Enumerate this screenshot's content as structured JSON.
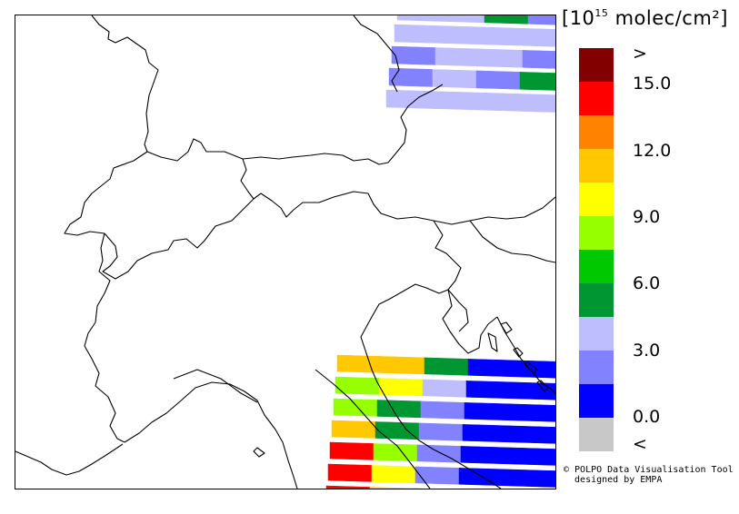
{
  "colorbar": {
    "title_base": "[10",
    "title_exp": "15",
    "title_unit": " molec/cm²]",
    "colors": [
      "#c8c8c8",
      "#0000ff",
      "#8282ff",
      "#bebeff",
      "#009632",
      "#00c800",
      "#96ff00",
      "#ffff00",
      "#ffc800",
      "#ff8200",
      "#ff0000",
      "#820000"
    ],
    "labels": [
      ">",
      "15.0",
      "12.0",
      "9.0",
      "6.0",
      "3.0",
      "0.0",
      "<"
    ]
  },
  "credits": {
    "line1": "© POLPO Data Visualisation Tool",
    "line2": "  designed by EMPA"
  },
  "map": {
    "region": "Alps, Northern Italy and Adriatic",
    "ne_swath": [
      [
        "#bebeff",
        "#bebeff",
        "#009632",
        "#8282ff",
        "#8282ff"
      ],
      [
        "#bebeff",
        "#bebeff",
        "#bebeff",
        "#bebeff",
        "#8282ff"
      ],
      [
        "#8282ff",
        "#bebeff",
        "#bebeff",
        "#8282ff",
        "#8282ff"
      ],
      [
        "#8282ff",
        "#bebeff",
        "#8282ff",
        "#009632",
        "#8282ff"
      ],
      [
        "#bebeff",
        "#bebeff",
        "#bebeff",
        "#bebeff",
        "#8282ff"
      ]
    ],
    "se_swath": [
      [
        "#ffc800",
        "#ffc800",
        "#009632",
        "#0000ff",
        "#0000ff",
        "#0000ff"
      ],
      [
        "#96ff00",
        "#ffff00",
        "#bebeff",
        "#0000ff",
        "#0000ff",
        "#0000ff"
      ],
      [
        "#96ff00",
        "#009632",
        "#8282ff",
        "#0000ff",
        "#0000ff",
        "#0000ff"
      ],
      [
        "#ffc800",
        "#009632",
        "#8282ff",
        "#0000ff",
        "#0000ff",
        "#0000ff"
      ],
      [
        "#ff0000",
        "#96ff00",
        "#8282ff",
        "#0000ff",
        "#0000ff",
        "#0000ff"
      ],
      [
        "#ff0000",
        "#ffff00",
        "#8282ff",
        "#0000ff",
        "#0000ff",
        "#0000ff"
      ],
      [
        "#ff0000",
        "#ffc800",
        "#8282ff",
        "#8282ff",
        "#0000ff",
        "#0000ff"
      ]
    ]
  }
}
